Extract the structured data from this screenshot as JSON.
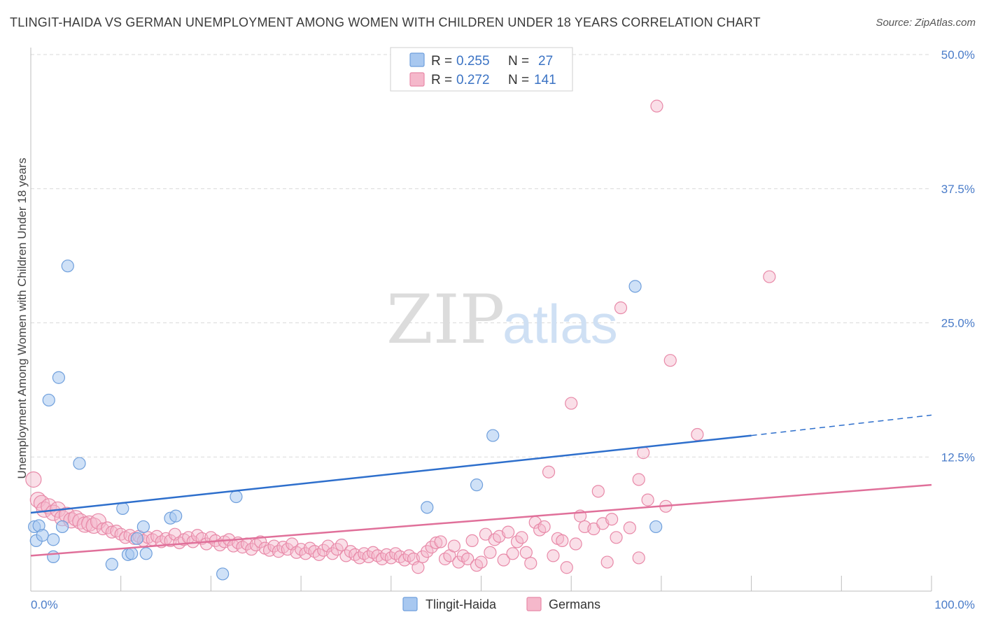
{
  "title": "TLINGIT-HAIDA VS GERMAN UNEMPLOYMENT AMONG WOMEN WITH CHILDREN UNDER 18 YEARS CORRELATION CHART",
  "source": "Source: ZipAtlas.com",
  "watermark": {
    "part1": "ZIP",
    "part2": "atlas"
  },
  "colors": {
    "tlingit_fill": "#a8c8f0",
    "tlingit_stroke": "#6f9fdc",
    "tlingit_line": "#2e6fcc",
    "german_fill": "#f5b8cb",
    "german_stroke": "#e889a8",
    "german_line": "#e0709a",
    "tick_text": "#4a7cc9",
    "grid": "#d9d9d9"
  },
  "legend": {
    "rows": [
      {
        "r_label": "R =",
        "r_value": "0.255",
        "n_label": "N =",
        "n_value": "27"
      },
      {
        "r_label": "R =",
        "r_value": "0.272",
        "n_label": "N =",
        "n_value": "141"
      }
    ]
  },
  "chart_data": {
    "type": "scatter",
    "xlabel": "",
    "ylabel": "Unemployment Among Women with Children Under 18 years",
    "xlim": [
      0,
      100
    ],
    "ylim": [
      0,
      50
    ],
    "x_tick_labels": [
      "0.0%",
      "100.0%"
    ],
    "y_tick_labels": [
      "12.5%",
      "25.0%",
      "37.5%",
      "50.0%"
    ],
    "y_ticks": [
      12.5,
      25.0,
      37.5,
      50.0
    ],
    "legend_position": "top-center",
    "series": [
      {
        "name": "Tlingit-Haida",
        "trend": {
          "x": [
            0,
            80
          ],
          "y": [
            7.3,
            14.5
          ],
          "dashed_to": [
            100,
            16.4
          ]
        },
        "points": [
          {
            "x": 0.4,
            "y": 6.0
          },
          {
            "x": 0.6,
            "y": 4.7
          },
          {
            "x": 0.9,
            "y": 6.1
          },
          {
            "x": 1.3,
            "y": 5.2
          },
          {
            "x": 2.0,
            "y": 17.8
          },
          {
            "x": 2.5,
            "y": 3.2
          },
          {
            "x": 2.5,
            "y": 4.8
          },
          {
            "x": 3.1,
            "y": 19.9
          },
          {
            "x": 3.5,
            "y": 6.0
          },
          {
            "x": 4.1,
            "y": 30.3
          },
          {
            "x": 5.4,
            "y": 11.9
          },
          {
            "x": 9.0,
            "y": 2.5
          },
          {
            "x": 10.2,
            "y": 7.7
          },
          {
            "x": 10.8,
            "y": 3.4
          },
          {
            "x": 11.2,
            "y": 3.5
          },
          {
            "x": 11.8,
            "y": 4.9
          },
          {
            "x": 12.5,
            "y": 6.0
          },
          {
            "x": 12.8,
            "y": 3.5
          },
          {
            "x": 15.5,
            "y": 6.8
          },
          {
            "x": 16.1,
            "y": 7.0
          },
          {
            "x": 21.3,
            "y": 1.6
          },
          {
            "x": 22.8,
            "y": 8.8
          },
          {
            "x": 44.0,
            "y": 7.8
          },
          {
            "x": 49.5,
            "y": 9.9
          },
          {
            "x": 51.3,
            "y": 14.5
          },
          {
            "x": 67.1,
            "y": 28.4
          },
          {
            "x": 69.4,
            "y": 6.0
          }
        ]
      },
      {
        "name": "Germans",
        "trend": {
          "x": [
            0,
            100
          ],
          "y": [
            3.3,
            9.9
          ]
        },
        "points": [
          {
            "x": 0.3,
            "y": 10.4
          },
          {
            "x": 0.8,
            "y": 8.5
          },
          {
            "x": 1.2,
            "y": 8.2
          },
          {
            "x": 1.5,
            "y": 7.6
          },
          {
            "x": 2.0,
            "y": 7.9
          },
          {
            "x": 2.5,
            "y": 7.3
          },
          {
            "x": 3.0,
            "y": 7.6
          },
          {
            "x": 3.5,
            "y": 6.8
          },
          {
            "x": 4.0,
            "y": 7.1
          },
          {
            "x": 4.5,
            "y": 6.6
          },
          {
            "x": 5.0,
            "y": 6.8
          },
          {
            "x": 5.5,
            "y": 6.5
          },
          {
            "x": 6.0,
            "y": 6.2
          },
          {
            "x": 6.5,
            "y": 6.3
          },
          {
            "x": 7.0,
            "y": 6.1
          },
          {
            "x": 7.5,
            "y": 6.5
          },
          {
            "x": 8.0,
            "y": 5.8
          },
          {
            "x": 8.5,
            "y": 5.9
          },
          {
            "x": 9.0,
            "y": 5.5
          },
          {
            "x": 9.5,
            "y": 5.6
          },
          {
            "x": 10.0,
            "y": 5.3
          },
          {
            "x": 10.5,
            "y": 5.0
          },
          {
            "x": 11.0,
            "y": 5.2
          },
          {
            "x": 11.5,
            "y": 4.9
          },
          {
            "x": 12.0,
            "y": 5.1
          },
          {
            "x": 12.5,
            "y": 4.7
          },
          {
            "x": 13.0,
            "y": 5.0
          },
          {
            "x": 13.5,
            "y": 4.8
          },
          {
            "x": 14.0,
            "y": 5.1
          },
          {
            "x": 14.5,
            "y": 4.6
          },
          {
            "x": 15.0,
            "y": 4.9
          },
          {
            "x": 15.5,
            "y": 4.7
          },
          {
            "x": 16.0,
            "y": 5.3
          },
          {
            "x": 16.5,
            "y": 4.5
          },
          {
            "x": 17.0,
            "y": 4.8
          },
          {
            "x": 17.5,
            "y": 5.0
          },
          {
            "x": 18.0,
            "y": 4.6
          },
          {
            "x": 18.5,
            "y": 5.2
          },
          {
            "x": 19.0,
            "y": 4.9
          },
          {
            "x": 19.5,
            "y": 4.4
          },
          {
            "x": 20.0,
            "y": 5.0
          },
          {
            "x": 20.5,
            "y": 4.7
          },
          {
            "x": 21.0,
            "y": 4.3
          },
          {
            "x": 21.5,
            "y": 4.6
          },
          {
            "x": 22.0,
            "y": 4.8
          },
          {
            "x": 22.5,
            "y": 4.2
          },
          {
            "x": 23.0,
            "y": 4.5
          },
          {
            "x": 23.5,
            "y": 4.1
          },
          {
            "x": 24.0,
            "y": 4.4
          },
          {
            "x": 24.5,
            "y": 3.9
          },
          {
            "x": 25.0,
            "y": 4.3
          },
          {
            "x": 25.5,
            "y": 4.6
          },
          {
            "x": 26.0,
            "y": 4.0
          },
          {
            "x": 26.5,
            "y": 3.8
          },
          {
            "x": 27.0,
            "y": 4.2
          },
          {
            "x": 27.5,
            "y": 3.7
          },
          {
            "x": 28.0,
            "y": 4.1
          },
          {
            "x": 28.5,
            "y": 3.9
          },
          {
            "x": 29.0,
            "y": 4.4
          },
          {
            "x": 29.5,
            "y": 3.6
          },
          {
            "x": 30.0,
            "y": 3.9
          },
          {
            "x": 30.5,
            "y": 3.5
          },
          {
            "x": 31.0,
            "y": 4.0
          },
          {
            "x": 31.5,
            "y": 3.7
          },
          {
            "x": 32.0,
            "y": 3.4
          },
          {
            "x": 32.5,
            "y": 3.8
          },
          {
            "x": 33.0,
            "y": 4.2
          },
          {
            "x": 33.5,
            "y": 3.5
          },
          {
            "x": 34.0,
            "y": 3.9
          },
          {
            "x": 34.5,
            "y": 4.3
          },
          {
            "x": 35.0,
            "y": 3.3
          },
          {
            "x": 35.5,
            "y": 3.7
          },
          {
            "x": 36.0,
            "y": 3.4
          },
          {
            "x": 36.5,
            "y": 3.1
          },
          {
            "x": 37.0,
            "y": 3.5
          },
          {
            "x": 37.5,
            "y": 3.2
          },
          {
            "x": 38.0,
            "y": 3.6
          },
          {
            "x": 38.5,
            "y": 3.3
          },
          {
            "x": 39.0,
            "y": 3.0
          },
          {
            "x": 39.5,
            "y": 3.4
          },
          {
            "x": 40.0,
            "y": 3.1
          },
          {
            "x": 40.5,
            "y": 3.5
          },
          {
            "x": 41.0,
            "y": 3.2
          },
          {
            "x": 41.5,
            "y": 2.9
          },
          {
            "x": 42.0,
            "y": 3.3
          },
          {
            "x": 42.5,
            "y": 3.0
          },
          {
            "x": 43.0,
            "y": 2.2
          },
          {
            "x": 43.5,
            "y": 3.2
          },
          {
            "x": 44.0,
            "y": 3.7
          },
          {
            "x": 44.5,
            "y": 4.1
          },
          {
            "x": 45.0,
            "y": 4.5
          },
          {
            "x": 45.5,
            "y": 4.6
          },
          {
            "x": 46.0,
            "y": 3.0
          },
          {
            "x": 46.5,
            "y": 3.3
          },
          {
            "x": 47.0,
            "y": 4.2
          },
          {
            "x": 47.5,
            "y": 2.7
          },
          {
            "x": 48.0,
            "y": 3.3
          },
          {
            "x": 48.5,
            "y": 3.0
          },
          {
            "x": 49.0,
            "y": 4.7
          },
          {
            "x": 49.5,
            "y": 2.4
          },
          {
            "x": 50.0,
            "y": 2.7
          },
          {
            "x": 50.5,
            "y": 5.3
          },
          {
            "x": 51.0,
            "y": 3.6
          },
          {
            "x": 51.5,
            "y": 4.8
          },
          {
            "x": 52.0,
            "y": 5.1
          },
          {
            "x": 52.5,
            "y": 2.9
          },
          {
            "x": 53.0,
            "y": 5.5
          },
          {
            "x": 53.5,
            "y": 3.5
          },
          {
            "x": 54.0,
            "y": 4.6
          },
          {
            "x": 54.5,
            "y": 5.0
          },
          {
            "x": 55.0,
            "y": 3.6
          },
          {
            "x": 55.5,
            "y": 2.6
          },
          {
            "x": 56.0,
            "y": 6.4
          },
          {
            "x": 56.5,
            "y": 5.7
          },
          {
            "x": 57.0,
            "y": 6.0
          },
          {
            "x": 57.5,
            "y": 11.1
          },
          {
            "x": 58.0,
            "y": 3.3
          },
          {
            "x": 58.5,
            "y": 4.9
          },
          {
            "x": 59.0,
            "y": 4.7
          },
          {
            "x": 59.5,
            "y": 2.2
          },
          {
            "x": 60.0,
            "y": 17.5
          },
          {
            "x": 60.5,
            "y": 4.4
          },
          {
            "x": 61.0,
            "y": 7.0
          },
          {
            "x": 61.5,
            "y": 6.0
          },
          {
            "x": 62.5,
            "y": 5.8
          },
          {
            "x": 63.0,
            "y": 9.3
          },
          {
            "x": 63.5,
            "y": 6.3
          },
          {
            "x": 64.0,
            "y": 2.7
          },
          {
            "x": 64.5,
            "y": 6.7
          },
          {
            "x": 65.0,
            "y": 5.0
          },
          {
            "x": 65.5,
            "y": 26.4
          },
          {
            "x": 66.5,
            "y": 5.9
          },
          {
            "x": 67.5,
            "y": 10.4
          },
          {
            "x": 68.0,
            "y": 12.9
          },
          {
            "x": 68.5,
            "y": 8.5
          },
          {
            "x": 69.5,
            "y": 45.2
          },
          {
            "x": 70.5,
            "y": 7.9
          },
          {
            "x": 71.0,
            "y": 21.5
          },
          {
            "x": 74.0,
            "y": 14.6
          },
          {
            "x": 82.0,
            "y": 29.3
          },
          {
            "x": 67.5,
            "y": 3.1
          }
        ]
      }
    ]
  },
  "bottom_legend": [
    "Tlingit-Haida",
    "Germans"
  ]
}
